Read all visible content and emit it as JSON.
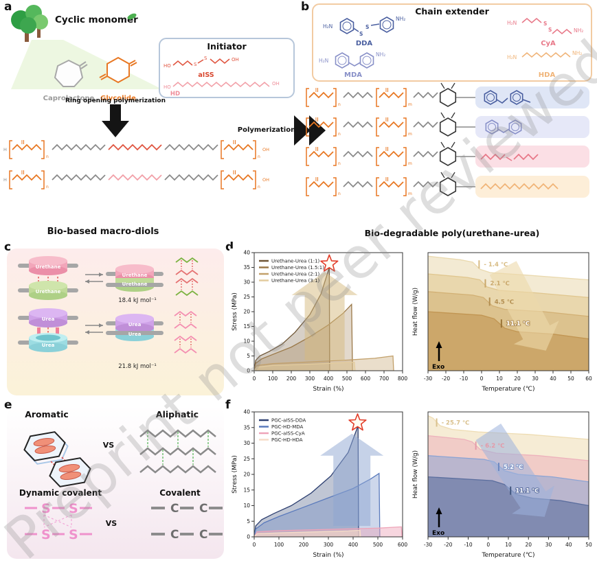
{
  "watermark": "Preprint not peer reviewed",
  "panel_labels": {
    "a": "a",
    "b": "b",
    "c": "c",
    "d": "d",
    "e": "e",
    "f": "f"
  },
  "atoms": {
    "h": "H",
    "ho": "HO",
    "oh": "OH",
    "h2n": "H₂N",
    "nh2": "NH₂",
    "s": "S",
    "sub_n": "n",
    "sub_m": "m"
  },
  "panel_a": {
    "title": "Cyclic monomer",
    "caprolactone": "Caprolactone",
    "glycolide": "Glycolide",
    "initiator_title": "Initiator",
    "aiss": "aISS",
    "hd": "HD",
    "arrow_label": "Ring opening polymerization",
    "bottom_label": "Bio-based macro-diols"
  },
  "panel_b": {
    "box_title": "Chain extender",
    "dda": "DDA",
    "cya": "CyA",
    "mda": "MDA",
    "hda": "HDA",
    "arrow_label": "Polymerization",
    "bottom_label": "Bio-degradable poly(urethane-urea)"
  },
  "panel_c": {
    "urethane": "Urethane",
    "urea": "Urea",
    "urethane_energy": "18.4 kJ mol⁻¹",
    "urea_energy": "21.8 kJ mol⁻¹"
  },
  "panel_e": {
    "aromatic": "Aromatic",
    "aliphatic": "Aliphatic",
    "vs": "VS",
    "dynamic": "Dynamic covalent",
    "covalent": "Covalent",
    "s": "S",
    "c": "C"
  },
  "chart_data": [
    {
      "id": "d_stress",
      "type": "area",
      "xlabel": "Strain (%)",
      "ylabel": "Stress (MPa)",
      "xlim": [
        0,
        800
      ],
      "ylim": [
        0,
        40
      ],
      "xticks": [
        0,
        100,
        200,
        300,
        400,
        500,
        600,
        700,
        800
      ],
      "yticks": [
        0,
        5,
        10,
        15,
        20,
        25,
        30,
        35,
        40
      ],
      "legend": true,
      "series": [
        {
          "name": "Urethane-Urea (1:1)",
          "color": "#6e5535",
          "fill_opacity": 0.28,
          "points": [
            [
              0,
              0
            ],
            [
              8,
              3.5
            ],
            [
              30,
              5
            ],
            [
              80,
              6.5
            ],
            [
              150,
              9
            ],
            [
              220,
              13
            ],
            [
              300,
              19
            ],
            [
              360,
              26
            ],
            [
              395,
              33
            ],
            [
              405,
              35
            ],
            [
              407,
              0
            ]
          ]
        },
        {
          "name": "Urethane-Urea (1.5:1)",
          "color": "#9a7848",
          "fill_opacity": 0.28,
          "points": [
            [
              0,
              0
            ],
            [
              8,
              2.5
            ],
            [
              40,
              4
            ],
            [
              100,
              5.5
            ],
            [
              200,
              8
            ],
            [
              300,
              11.5
            ],
            [
              400,
              15.5
            ],
            [
              480,
              19.5
            ],
            [
              525,
              22.5
            ],
            [
              530,
              0
            ]
          ]
        },
        {
          "name": "Urethane-Urea (2:1)",
          "color": "#c2a06a",
          "fill_opacity": 0.35,
          "points": [
            [
              0,
              0
            ],
            [
              15,
              1.8
            ],
            [
              100,
              2.4
            ],
            [
              300,
              3
            ],
            [
              500,
              3.6
            ],
            [
              650,
              4.2
            ],
            [
              748,
              5
            ],
            [
              752,
              0
            ]
          ]
        },
        {
          "name": "Urethane-Urea (3:1)",
          "color": "#e3cc9e",
          "fill_opacity": 0.45,
          "points": [
            [
              0,
              0
            ],
            [
              15,
              1.2
            ],
            [
              100,
              1.8
            ],
            [
              300,
              2.2
            ],
            [
              450,
              2.6
            ],
            [
              540,
              2.9
            ],
            [
              544,
              0
            ]
          ]
        }
      ],
      "star": [
        405,
        36.2
      ],
      "big_arrow": {
        "x1": 380,
        "y1": 3.5,
        "x2": 380,
        "y2": 33.5,
        "w": 58,
        "head_w": 96,
        "head_l": 34,
        "color": "#d5b97e",
        "opacity": 0.5
      }
    },
    {
      "id": "d_dsc",
      "type": "line",
      "xlabel": "Temperature (℃)",
      "ylabel": "Heat flow (W/g)",
      "xlim": [
        -30,
        60
      ],
      "ylim": [
        0,
        10
      ],
      "xticks": [
        -30,
        -20,
        -10,
        0,
        10,
        20,
        30,
        40,
        50,
        60
      ],
      "exo_label": "Exo",
      "series": [
        {
          "name": "",
          "color": "#ead9ae",
          "fill_opacity": 0.55,
          "points": [
            [
              -30,
              9.7
            ],
            [
              -12,
              9.4
            ],
            [
              -5,
              9.2
            ],
            [
              -1,
              8.6
            ],
            [
              5,
              8.3
            ],
            [
              25,
              8.1
            ],
            [
              60,
              7.7
            ]
          ]
        },
        {
          "name": "",
          "color": "#e0c68e",
          "fill_opacity": 0.55,
          "points": [
            [
              -30,
              8.2
            ],
            [
              -8,
              7.9
            ],
            [
              -1,
              7.7
            ],
            [
              3,
              7.1
            ],
            [
              10,
              6.8
            ],
            [
              30,
              6.6
            ],
            [
              60,
              6.2
            ]
          ]
        },
        {
          "name": "",
          "color": "#d2b074",
          "fill_opacity": 0.55,
          "points": [
            [
              -30,
              6.7
            ],
            [
              -5,
              6.4
            ],
            [
              1,
              6.2
            ],
            [
              6,
              5.5
            ],
            [
              13,
              5.2
            ],
            [
              35,
              5.0
            ],
            [
              60,
              4.6
            ]
          ]
        },
        {
          "name": "",
          "color": "#c19552",
          "fill_opacity": 0.6,
          "points": [
            [
              -30,
              5.0
            ],
            [
              0,
              4.7
            ],
            [
              7,
              4.4
            ],
            [
              13,
              3.6
            ],
            [
              20,
              3.3
            ],
            [
              40,
              3.1
            ],
            [
              60,
              2.7
            ]
          ]
        }
      ],
      "annotations": [
        {
          "text": "- 1.4 ℃",
          "x": -1.4,
          "y": 9.0,
          "color": "#d8bc84",
          "tick_color": "#d8bc84"
        },
        {
          "text": "2.1 ℃",
          "x": 2.1,
          "y": 7.4,
          "color": "#c9a76a",
          "tick_color": "#c9a76a"
        },
        {
          "text": "4.5 ℃",
          "x": 4.5,
          "y": 5.85,
          "color": "#b38e50",
          "tick_color": "#b38e50"
        },
        {
          "text": "11.1 ℃",
          "x": 11.1,
          "y": 4.0,
          "color": "#ffffff",
          "stroke": "#b3905a",
          "tick_color": "#9a7438"
        }
      ],
      "big_arrow": {
        "x1": 12,
        "y1": 8.7,
        "x2": 36,
        "y2": 1.7,
        "w": 44,
        "head_w": 74,
        "head_l": 30,
        "color": "#ecd9aa",
        "opacity": 0.6
      }
    },
    {
      "id": "f_stress",
      "type": "area",
      "xlabel": "Strain (%)",
      "ylabel": "Stress (MPa)",
      "xlim": [
        0,
        600
      ],
      "ylim": [
        0,
        40
      ],
      "xticks": [
        0,
        100,
        200,
        300,
        400,
        500,
        600
      ],
      "yticks": [
        0,
        5,
        10,
        15,
        20,
        25,
        30,
        35,
        40
      ],
      "legend": true,
      "series": [
        {
          "name": "PGC-aISS-DDA",
          "color": "#2f4172",
          "fill_opacity": 0.3,
          "points": [
            [
              0,
              0
            ],
            [
              6,
              3.5
            ],
            [
              30,
              5.5
            ],
            [
              80,
              7.5
            ],
            [
              150,
              10
            ],
            [
              230,
              14
            ],
            [
              310,
              19.5
            ],
            [
              380,
              27
            ],
            [
              415,
              34.5
            ],
            [
              420,
              35.8
            ],
            [
              422,
              0
            ]
          ]
        },
        {
          "name": "PGC-HD-MDA",
          "color": "#5a7abc",
          "fill_opacity": 0.3,
          "points": [
            [
              0,
              0
            ],
            [
              6,
              2.5
            ],
            [
              40,
              4.5
            ],
            [
              100,
              6.5
            ],
            [
              200,
              9.5
            ],
            [
              300,
              12.5
            ],
            [
              400,
              15.5
            ],
            [
              470,
              18.5
            ],
            [
              505,
              20.3
            ],
            [
              508,
              0
            ]
          ]
        },
        {
          "name": "PGC-aISS-CyA",
          "color": "#eea4b8",
          "fill_opacity": 0.45,
          "points": [
            [
              0,
              0
            ],
            [
              12,
              1.6
            ],
            [
              100,
              2
            ],
            [
              300,
              2.4
            ],
            [
              500,
              2.8
            ],
            [
              595,
              3.2
            ],
            [
              598,
              0
            ]
          ]
        },
        {
          "name": "PGC-HD-HDA",
          "color": "#f6dcc8",
          "fill_opacity": 0.6,
          "points": [
            [
              0,
              0
            ],
            [
              12,
              1
            ],
            [
              100,
              1.3
            ],
            [
              250,
              1.6
            ],
            [
              380,
              1.9
            ],
            [
              428,
              2.1
            ],
            [
              430,
              0
            ]
          ]
        }
      ],
      "star": [
        418,
        36.5
      ],
      "big_arrow": {
        "x1": 395,
        "y1": 3.5,
        "x2": 395,
        "y2": 33,
        "w": 54,
        "head_w": 92,
        "head_l": 32,
        "color": "#8da5d2",
        "opacity": 0.5
      }
    },
    {
      "id": "f_dsc",
      "type": "line",
      "xlabel": "Temperature (℃)",
      "ylabel": "Heat flow (W/g)",
      "xlim": [
        -30,
        50
      ],
      "ylim": [
        0,
        10
      ],
      "xticks": [
        -30,
        -20,
        -10,
        0,
        10,
        20,
        30,
        40,
        50
      ],
      "exo_label": "Exo",
      "series": [
        {
          "name": "",
          "color": "#eedcb2",
          "fill_opacity": 0.55,
          "points": [
            [
              -30,
              9.7
            ],
            [
              -27.5,
              9.5
            ],
            [
              -24,
              8.9
            ],
            [
              -18,
              8.6
            ],
            [
              -5,
              8.4
            ],
            [
              20,
              8.2
            ],
            [
              50,
              7.8
            ]
          ]
        },
        {
          "name": "",
          "color": "#edb2bc",
          "fill_opacity": 0.55,
          "points": [
            [
              -30,
              8.1
            ],
            [
              -12,
              7.8
            ],
            [
              -8,
              7.6
            ],
            [
              -4,
              7.0
            ],
            [
              4,
              6.7
            ],
            [
              25,
              6.5
            ],
            [
              50,
              6.1
            ]
          ]
        },
        {
          "name": "",
          "color": "#8ca4d4",
          "fill_opacity": 0.55,
          "points": [
            [
              -30,
              6.5
            ],
            [
              -2,
              6.2
            ],
            [
              3,
              6.0
            ],
            [
              8,
              5.3
            ],
            [
              15,
              5.0
            ],
            [
              32,
              4.8
            ],
            [
              50,
              4.4
            ]
          ]
        },
        {
          "name": "",
          "color": "#5b6e9e",
          "fill_opacity": 0.6,
          "points": [
            [
              -30,
              4.8
            ],
            [
              2,
              4.5
            ],
            [
              8,
              4.2
            ],
            [
              14,
              3.4
            ],
            [
              22,
              3.1
            ],
            [
              36,
              2.9
            ],
            [
              50,
              2.5
            ]
          ]
        }
      ],
      "annotations": [
        {
          "text": "- 25.7 ℃",
          "x": -25.7,
          "y": 9.15,
          "color": "#d9c08c",
          "tick_color": "#d9c08c"
        },
        {
          "text": "- 6.2 ℃",
          "x": -6.2,
          "y": 7.3,
          "color": "#e49aa8",
          "tick_color": "#e49aa8"
        },
        {
          "text": "5.2 ℃",
          "x": 5.2,
          "y": 5.6,
          "color": "#ffffff",
          "stroke": "#7d96c8",
          "tick_color": "#6d88c0"
        },
        {
          "text": "11.1 ℃",
          "x": 11.1,
          "y": 3.7,
          "color": "#ffffff",
          "stroke": "#5b6e9e",
          "tick_color": "#41567e"
        }
      ],
      "big_arrow": {
        "x1": 0,
        "y1": 8.4,
        "x2": 28,
        "y2": 1.6,
        "w": 44,
        "head_w": 74,
        "head_l": 30,
        "color": "#9db3dc",
        "opacity": 0.55
      }
    }
  ]
}
